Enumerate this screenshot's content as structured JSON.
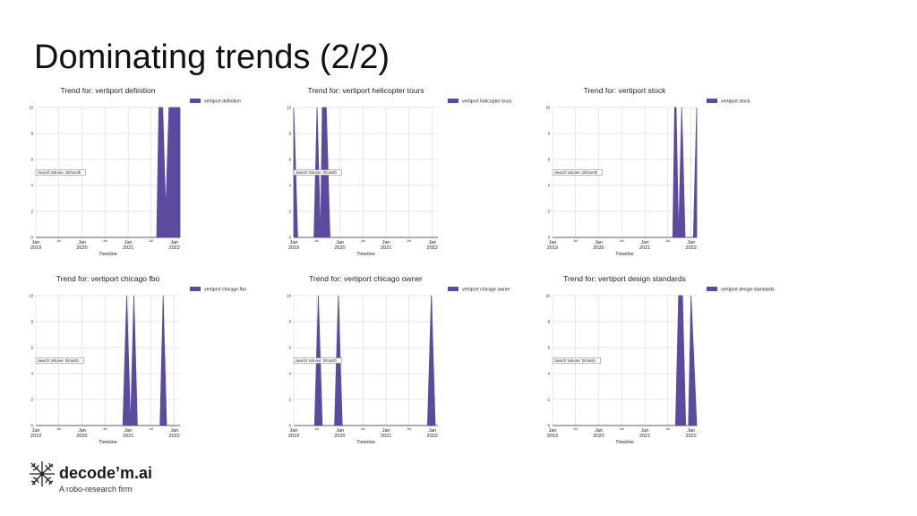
{
  "slide": {
    "title": "Dominating trends (2/2)"
  },
  "logo": {
    "brand": "decode’m.ai",
    "tagline": "A robo-research firm",
    "icon": "fractal-logo-icon"
  },
  "colors": {
    "area": "#5b4a9e",
    "grid": "#dddddd",
    "axis": "#444444",
    "text": "#222222"
  },
  "chart_data": [
    {
      "type": "area",
      "title": "Trend for: vertiport definition",
      "xlabel": "Timeline",
      "legend": "vertiport definition",
      "legend_placement": "top-right, outside",
      "annotation": "Search Volume: 10/month",
      "xlim": [
        "2019-01-01",
        "2022-02-15"
      ],
      "ylim": [
        0,
        10
      ],
      "yticks": [
        0,
        2,
        4,
        6,
        8,
        10
      ],
      "xticks": [
        {
          "date": "2019-01-01",
          "top": "Jan",
          "bottom": "2019"
        },
        {
          "date": "2019-07-01",
          "top": "Jul",
          "bottom": ""
        },
        {
          "date": "2020-01-01",
          "top": "Jan",
          "bottom": "2020"
        },
        {
          "date": "2020-07-01",
          "top": "Jul",
          "bottom": ""
        },
        {
          "date": "2021-01-01",
          "top": "Jan",
          "bottom": "2021"
        },
        {
          "date": "2021-07-01",
          "top": "Jul",
          "bottom": ""
        },
        {
          "date": "2022-01-01",
          "top": "Jan",
          "bottom": "2022"
        }
      ],
      "grid": true,
      "series": [
        {
          "name": "vertiport definition",
          "x": [
            "2019-01-01",
            "2021-08-15",
            "2021-09-01",
            "2021-10-01",
            "2021-10-25",
            "2021-11-20",
            "2021-12-12",
            "2022-02-15"
          ],
          "y": [
            0,
            0,
            10,
            10,
            2,
            10,
            10,
            10
          ]
        }
      ]
    },
    {
      "type": "area",
      "title": "Trend for: vertiport helicopter tours",
      "xlabel": "Timeline",
      "legend": "vertiport helicopter tours",
      "legend_placement": "top-right, outside",
      "annotation": "Search Volume: 0/month",
      "xlim": [
        "2019-01-01",
        "2022-02-15"
      ],
      "ylim": [
        0,
        10
      ],
      "yticks": [
        0,
        2,
        4,
        6,
        8,
        10
      ],
      "xticks": [
        {
          "date": "2019-01-01",
          "top": "Jan",
          "bottom": "2019"
        },
        {
          "date": "2019-07-01",
          "top": "Jul",
          "bottom": ""
        },
        {
          "date": "2020-01-01",
          "top": "Jan",
          "bottom": "2020"
        },
        {
          "date": "2020-07-01",
          "top": "Jul",
          "bottom": ""
        },
        {
          "date": "2021-01-01",
          "top": "Jan",
          "bottom": "2021"
        },
        {
          "date": "2021-07-01",
          "top": "Jul",
          "bottom": ""
        },
        {
          "date": "2022-01-01",
          "top": "Jan",
          "bottom": "2022"
        }
      ],
      "grid": true,
      "series": [
        {
          "name": "vertiport helicopter tours",
          "x": [
            "2019-01-01",
            "2019-02-01",
            "2019-02-15",
            "2019-06-10",
            "2019-07-05",
            "2019-08-01",
            "2019-08-15",
            "2019-09-15",
            "2019-10-15",
            "2022-02-15"
          ],
          "y": [
            10,
            0,
            0,
            0,
            10,
            0,
            10,
            10,
            0,
            0
          ]
        }
      ]
    },
    {
      "type": "area",
      "title": "Trend for: vertiport stock",
      "xlabel": "Timeline",
      "legend": "vertiport stock",
      "legend_placement": "top-right, outside",
      "annotation": "Search Volume: 10/month",
      "xlim": [
        "2019-01-01",
        "2022-02-15"
      ],
      "ylim": [
        0,
        10
      ],
      "yticks": [
        0,
        2,
        4,
        6,
        8,
        10
      ],
      "xticks": [
        {
          "date": "2019-01-01",
          "top": "Jan",
          "bottom": "2019"
        },
        {
          "date": "2019-07-01",
          "top": "Jul",
          "bottom": ""
        },
        {
          "date": "2020-01-01",
          "top": "Jan",
          "bottom": "2020"
        },
        {
          "date": "2020-07-01",
          "top": "Jul",
          "bottom": ""
        },
        {
          "date": "2021-01-01",
          "top": "Jan",
          "bottom": "2021"
        },
        {
          "date": "2021-07-01",
          "top": "Jul",
          "bottom": ""
        },
        {
          "date": "2022-01-01",
          "top": "Jan",
          "bottom": "2022"
        }
      ],
      "grid": true,
      "series": [
        {
          "name": "vertiport stock",
          "x": [
            "2019-01-01",
            "2021-08-10",
            "2021-08-25",
            "2021-09-05",
            "2021-09-25",
            "2021-10-20",
            "2021-11-15",
            "2022-01-20",
            "2022-02-15"
          ],
          "y": [
            0,
            0,
            10,
            10,
            0,
            10,
            0,
            0,
            10
          ]
        }
      ]
    },
    {
      "type": "area",
      "title": "Trend for: vertiport chicago fbo",
      "xlabel": "Timeline",
      "legend": "vertiport chicago fbo",
      "legend_placement": "top-right, outside",
      "annotation": "Search Volume: 0/month",
      "xlim": [
        "2019-01-01",
        "2022-02-15"
      ],
      "ylim": [
        0,
        10
      ],
      "yticks": [
        0,
        2,
        4,
        6,
        8,
        10
      ],
      "xticks": [
        {
          "date": "2019-01-01",
          "top": "Jan",
          "bottom": "2019"
        },
        {
          "date": "2019-07-01",
          "top": "Jul",
          "bottom": ""
        },
        {
          "date": "2020-01-01",
          "top": "Jan",
          "bottom": "2020"
        },
        {
          "date": "2020-07-01",
          "top": "Jul",
          "bottom": ""
        },
        {
          "date": "2021-01-01",
          "top": "Jan",
          "bottom": "2021"
        },
        {
          "date": "2021-07-01",
          "top": "Jul",
          "bottom": ""
        },
        {
          "date": "2022-01-01",
          "top": "Jan",
          "bottom": "2022"
        }
      ],
      "grid": true,
      "series": [
        {
          "name": "vertiport chicago fbo",
          "x": [
            "2019-01-01",
            "2020-11-20",
            "2020-12-20",
            "2021-01-20",
            "2021-02-15",
            "2021-03-15",
            "2021-09-10",
            "2021-10-05",
            "2021-11-01",
            "2022-02-15"
          ],
          "y": [
            0,
            0,
            10,
            0,
            10,
            0,
            0,
            10,
            0,
            0
          ]
        }
      ]
    },
    {
      "type": "area",
      "title": "Trend for: vertiport chicago owner",
      "xlabel": "Timeline",
      "legend": "vertiport chicago owner",
      "legend_placement": "top-right, outside",
      "annotation": "Search Volume: 0/month",
      "xlim": [
        "2019-01-01",
        "2022-02-15"
      ],
      "ylim": [
        0,
        10
      ],
      "yticks": [
        0,
        2,
        4,
        6,
        8,
        10
      ],
      "xticks": [
        {
          "date": "2019-01-01",
          "top": "Jan",
          "bottom": "2019"
        },
        {
          "date": "2019-07-01",
          "top": "Jul",
          "bottom": ""
        },
        {
          "date": "2020-01-01",
          "top": "Jan",
          "bottom": "2020"
        },
        {
          "date": "2020-07-01",
          "top": "Jul",
          "bottom": ""
        },
        {
          "date": "2021-01-01",
          "top": "Jan",
          "bottom": "2021"
        },
        {
          "date": "2021-07-01",
          "top": "Jul",
          "bottom": ""
        },
        {
          "date": "2022-01-01",
          "top": "Jan",
          "bottom": "2022"
        }
      ],
      "grid": true,
      "series": [
        {
          "name": "vertiport chicago owner",
          "x": [
            "2019-01-01",
            "2019-06-15",
            "2019-07-15",
            "2019-08-15",
            "2019-11-20",
            "2019-12-20",
            "2020-01-20",
            "2021-11-25",
            "2021-12-25",
            "2022-01-25",
            "2022-02-15"
          ],
          "y": [
            0,
            0,
            10,
            0,
            0,
            10,
            0,
            0,
            10,
            0,
            0
          ]
        }
      ]
    },
    {
      "type": "area",
      "title": "Trend for: vertiport design standards",
      "xlabel": "Timeline",
      "legend": "vertiport design standards",
      "legend_placement": "top-right, outside",
      "annotation": "Search Volume: 0/month",
      "xlim": [
        "2019-01-01",
        "2022-02-15"
      ],
      "ylim": [
        0,
        10
      ],
      "yticks": [
        0,
        2,
        4,
        6,
        8,
        10
      ],
      "xticks": [
        {
          "date": "2019-01-01",
          "top": "Jan",
          "bottom": "2019"
        },
        {
          "date": "2019-07-01",
          "top": "Jul",
          "bottom": ""
        },
        {
          "date": "2020-01-01",
          "top": "Jan",
          "bottom": "2020"
        },
        {
          "date": "2020-07-01",
          "top": "Jul",
          "bottom": ""
        },
        {
          "date": "2021-01-01",
          "top": "Jan",
          "bottom": "2021"
        },
        {
          "date": "2021-07-01",
          "top": "Jul",
          "bottom": ""
        },
        {
          "date": "2022-01-01",
          "top": "Jan",
          "bottom": "2022"
        }
      ],
      "grid": true,
      "series": [
        {
          "name": "vertiport design standards",
          "x": [
            "2019-01-01",
            "2021-09-01",
            "2021-09-25",
            "2021-10-25",
            "2021-11-20",
            "2021-12-12",
            "2022-01-01",
            "2022-02-15"
          ],
          "y": [
            0,
            0,
            10,
            10,
            0,
            0,
            10,
            0
          ]
        }
      ]
    }
  ]
}
